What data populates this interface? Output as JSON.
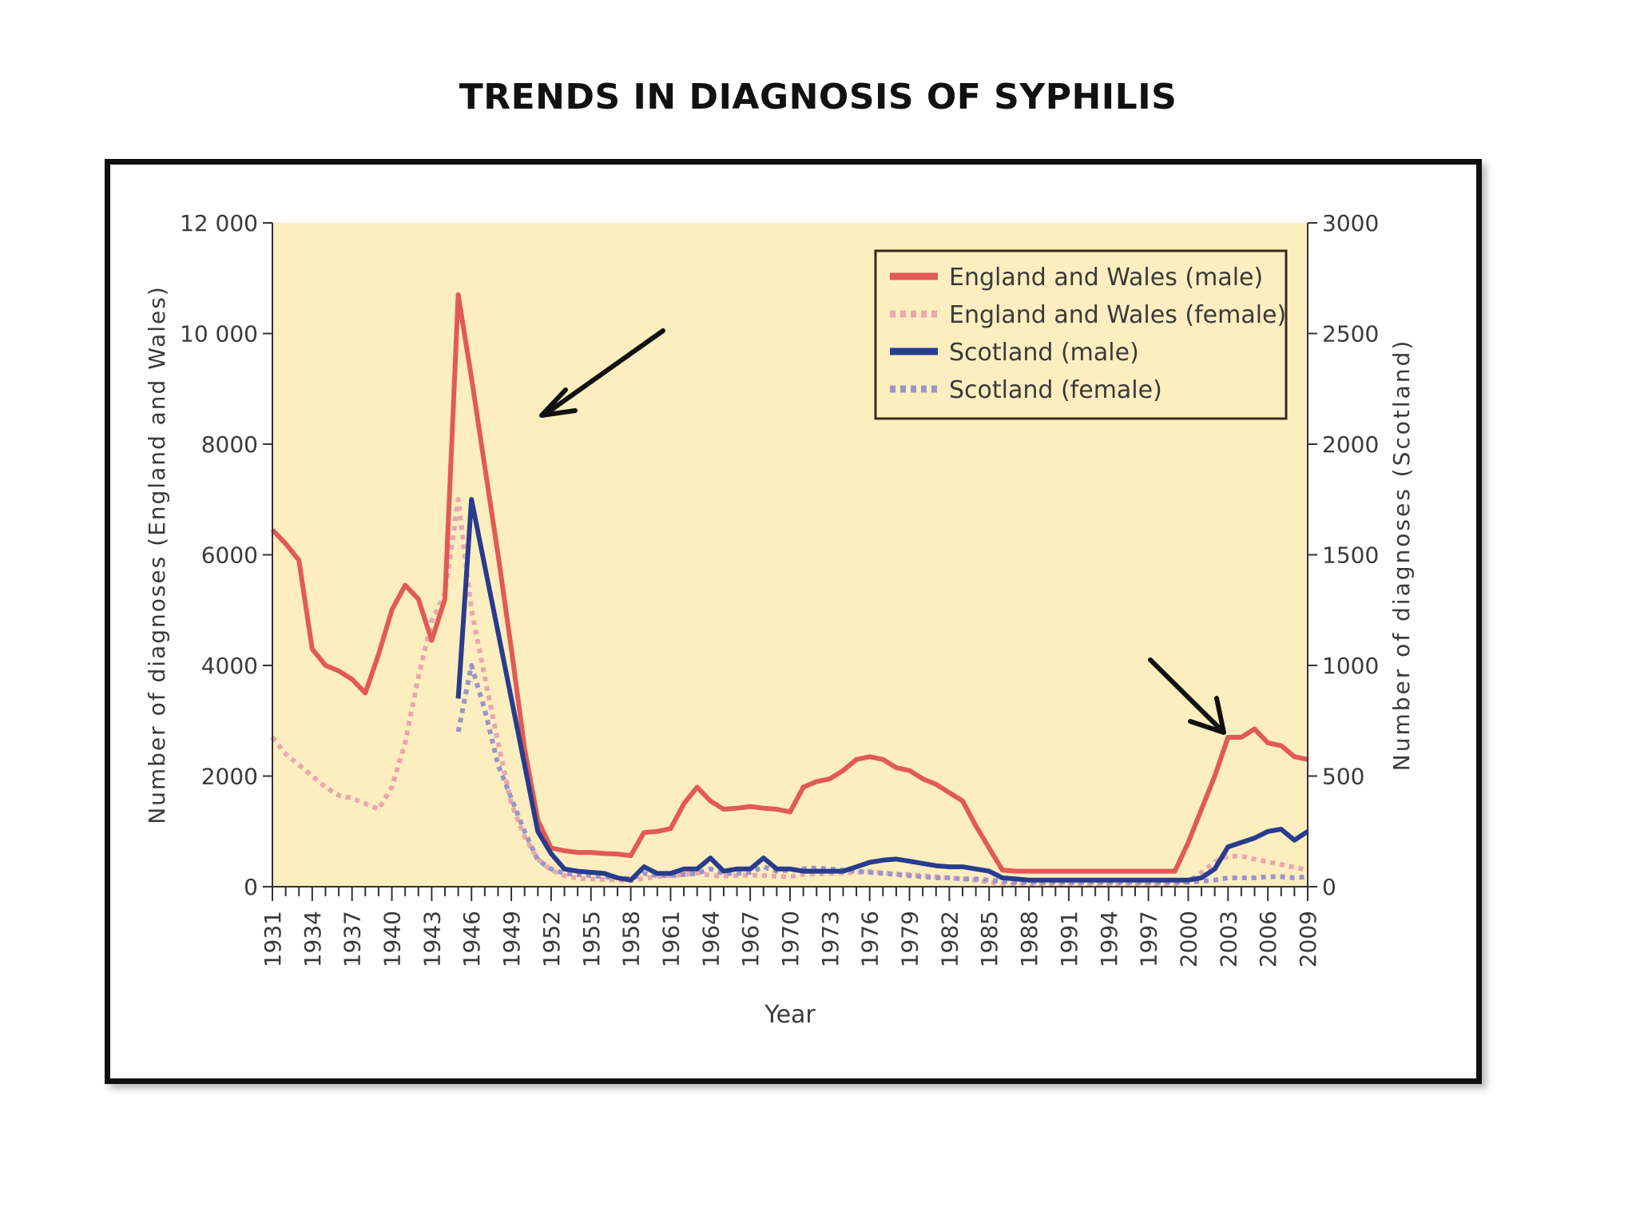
{
  "slide": {
    "title": "TRENDS IN DIAGNOSIS OF SYPHILIS"
  },
  "chart_data": {
    "type": "line",
    "xlabel": "Year",
    "ylabel_left": "Number of diagnoses (England and Wales)",
    "ylabel_right": "Number of diagnoses (Scotland)",
    "xlim": [
      1931,
      2009
    ],
    "ylim_left": [
      0,
      12000
    ],
    "ylim_right": [
      0,
      3000
    ],
    "x_ticks": [
      1931,
      1934,
      1937,
      1940,
      1943,
      1946,
      1949,
      1952,
      1955,
      1958,
      1961,
      1964,
      1967,
      1970,
      1973,
      1976,
      1979,
      1982,
      1985,
      1988,
      1991,
      1994,
      1997,
      2000,
      2003,
      2006,
      2009
    ],
    "y_ticks_left": [
      {
        "value": 0,
        "label": "0"
      },
      {
        "value": 2000,
        "label": "2000"
      },
      {
        "value": 4000,
        "label": "4000"
      },
      {
        "value": 6000,
        "label": "6000"
      },
      {
        "value": 8000,
        "label": "8000"
      },
      {
        "value": 10000,
        "label": "10 000"
      },
      {
        "value": 12000,
        "label": "12 000"
      }
    ],
    "y_ticks_right": [
      {
        "value": 0,
        "label": "0"
      },
      {
        "value": 500,
        "label": "500"
      },
      {
        "value": 1000,
        "label": "1000"
      },
      {
        "value": 1500,
        "label": "1500"
      },
      {
        "value": 2000,
        "label": "2000"
      },
      {
        "value": 2500,
        "label": "2500"
      },
      {
        "value": 3000,
        "label": "3000"
      }
    ],
    "plot_background": "#fdeec0",
    "legend_position": "top-right",
    "series": [
      {
        "name": "England and Wales (male)",
        "axis": "left",
        "color": "#e25a55",
        "style": "solid",
        "x": [
          1931,
          1932,
          1933,
          1934,
          1935,
          1936,
          1937,
          1938,
          1939,
          1940,
          1941,
          1942,
          1943,
          1944,
          1945,
          1946,
          1947,
          1948,
          1949,
          1950,
          1951,
          1952,
          1953,
          1954,
          1955,
          1956,
          1957,
          1958,
          1959,
          1960,
          1961,
          1962,
          1963,
          1964,
          1965,
          1966,
          1967,
          1968,
          1969,
          1970,
          1971,
          1972,
          1973,
          1974,
          1975,
          1976,
          1977,
          1978,
          1979,
          1980,
          1981,
          1982,
          1983,
          1984,
          1985,
          1986,
          1987,
          1988,
          1989,
          1990,
          1991,
          1992,
          1993,
          1994,
          1995,
          1996,
          1997,
          1998,
          1999,
          2000,
          2001,
          2002,
          2003,
          2004,
          2005,
          2006,
          2007,
          2008,
          2009
        ],
        "y": [
          6450,
          6200,
          5900,
          4300,
          4000,
          3900,
          3750,
          3500,
          4200,
          5000,
          5450,
          5200,
          4450,
          5200,
          10700,
          9200,
          7600,
          6000,
          4300,
          2500,
          1200,
          700,
          650,
          620,
          620,
          600,
          590,
          560,
          980,
          1000,
          1050,
          1500,
          1800,
          1550,
          1400,
          1420,
          1450,
          1420,
          1400,
          1350,
          1800,
          1900,
          1950,
          2100,
          2300,
          2350,
          2300,
          2150,
          2100,
          1950,
          1850,
          1700,
          1550,
          1100,
          700,
          300,
          280,
          280,
          280,
          280,
          280,
          280,
          280,
          280,
          280,
          280,
          280,
          280,
          280,
          800,
          1400,
          2000,
          2700,
          2700,
          2850,
          2600,
          2550,
          2350,
          2300
        ]
      },
      {
        "name": "England and Wales (female)",
        "axis": "left",
        "color": "#e9a8ad",
        "style": "dotted",
        "x": [
          1931,
          1932,
          1933,
          1934,
          1935,
          1936,
          1937,
          1938,
          1939,
          1940,
          1941,
          1942,
          1943,
          1944,
          1945,
          1946,
          1947,
          1948,
          1949,
          1950,
          1951,
          1952,
          1953,
          1954,
          1955,
          1956,
          1957,
          1958,
          1959,
          1960,
          1961,
          1962,
          1963,
          1964,
          1965,
          1966,
          1967,
          1968,
          1969,
          1970,
          1971,
          1972,
          1973,
          1974,
          1975,
          1976,
          1977,
          1978,
          1979,
          1980,
          1981,
          1982,
          1983,
          1984,
          1985,
          1986,
          1987,
          1988,
          1989,
          1990,
          1991,
          1992,
          1993,
          1994,
          1995,
          1996,
          1997,
          1998,
          1999,
          2000,
          2001,
          2002,
          2003,
          2004,
          2005,
          2006,
          2007,
          2008,
          2009
        ],
        "y": [
          2700,
          2400,
          2200,
          2000,
          1800,
          1650,
          1600,
          1500,
          1400,
          1800,
          2600,
          3800,
          4800,
          5300,
          7000,
          5000,
          3800,
          2600,
          1500,
          900,
          500,
          300,
          200,
          150,
          140,
          130,
          120,
          110,
          150,
          180,
          200,
          220,
          250,
          200,
          190,
          200,
          210,
          200,
          190,
          180,
          220,
          230,
          240,
          250,
          260,
          270,
          250,
          230,
          220,
          200,
          180,
          160,
          140,
          120,
          80,
          50,
          40,
          40,
          40,
          40,
          40,
          40,
          40,
          40,
          40,
          40,
          40,
          40,
          40,
          100,
          250,
          450,
          550,
          550,
          500,
          450,
          400,
          350,
          300
        ]
      },
      {
        "name": "Scotland (male)",
        "axis": "right",
        "color": "#283c8e",
        "style": "solid",
        "x": [
          1945,
          1946,
          1947,
          1948,
          1949,
          1950,
          1951,
          1952,
          1953,
          1954,
          1955,
          1956,
          1957,
          1958,
          1959,
          1960,
          1961,
          1962,
          1963,
          1964,
          1965,
          1966,
          1967,
          1968,
          1969,
          1970,
          1971,
          1972,
          1973,
          1974,
          1975,
          1976,
          1977,
          1978,
          1979,
          1980,
          1981,
          1982,
          1983,
          1984,
          1985,
          1986,
          1987,
          1988,
          1989,
          1990,
          1991,
          1992,
          1993,
          1994,
          1995,
          1996,
          1997,
          1998,
          1999,
          2000,
          2001,
          2002,
          2003,
          2004,
          2005,
          2006,
          2007,
          2008,
          2009
        ],
        "y": [
          850,
          1750,
          1450,
          1150,
          850,
          550,
          250,
          150,
          80,
          70,
          65,
          60,
          40,
          30,
          90,
          60,
          60,
          80,
          80,
          130,
          70,
          80,
          80,
          130,
          80,
          80,
          70,
          70,
          70,
          70,
          90,
          110,
          120,
          125,
          115,
          105,
          95,
          90,
          90,
          80,
          70,
          40,
          35,
          30,
          30,
          30,
          30,
          30,
          30,
          30,
          30,
          30,
          30,
          30,
          30,
          30,
          40,
          80,
          180,
          200,
          220,
          250,
          260,
          210,
          250
        ]
      },
      {
        "name": "Scotland (female)",
        "axis": "right",
        "color": "#9a95c9",
        "style": "dotted",
        "x": [
          1945,
          1946,
          1947,
          1948,
          1949,
          1950,
          1951,
          1952,
          1953,
          1954,
          1955,
          1956,
          1957,
          1958,
          1959,
          1960,
          1961,
          1962,
          1963,
          1964,
          1965,
          1966,
          1967,
          1968,
          1969,
          1970,
          1971,
          1972,
          1973,
          1974,
          1975,
          1976,
          1977,
          1978,
          1979,
          1980,
          1981,
          1982,
          1983,
          1984,
          1985,
          1986,
          1987,
          1988,
          1989,
          1990,
          1991,
          1992,
          1993,
          1994,
          1995,
          1996,
          1997,
          1998,
          1999,
          2000,
          2001,
          2002,
          2003,
          2004,
          2005,
          2006,
          2007,
          2008,
          2009
        ],
        "y": [
          700,
          1000,
          800,
          550,
          400,
          250,
          120,
          80,
          60,
          55,
          50,
          45,
          40,
          35,
          60,
          50,
          50,
          55,
          60,
          80,
          60,
          60,
          65,
          90,
          70,
          75,
          80,
          85,
          80,
          75,
          70,
          65,
          60,
          55,
          50,
          45,
          40,
          40,
          35,
          35,
          30,
          25,
          20,
          20,
          20,
          20,
          20,
          20,
          20,
          20,
          20,
          20,
          20,
          20,
          20,
          20,
          25,
          30,
          40,
          40,
          40,
          45,
          45,
          40,
          45
        ]
      }
    ]
  }
}
